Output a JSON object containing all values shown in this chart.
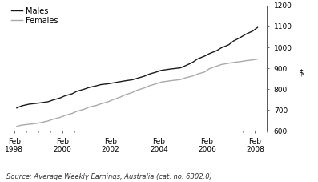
{
  "title": "",
  "ylabel": "$",
  "source_text": "Source: Average Weekly Earnings, Australia (cat. no. 6302.0)",
  "legend_males": "Males",
  "legend_females": "Females",
  "ylim": [
    600,
    1200
  ],
  "yticks": [
    600,
    700,
    800,
    900,
    1000,
    1100,
    1200
  ],
  "xtick_years": [
    1998,
    2000,
    2002,
    2004,
    2006,
    2008
  ],
  "xlim": [
    1997.8,
    2008.5
  ],
  "males_x": [
    1998.1,
    1998.3,
    1998.6,
    1998.9,
    1999.1,
    1999.4,
    1999.6,
    1999.9,
    2000.1,
    2000.4,
    2000.6,
    2000.9,
    2001.1,
    2001.4,
    2001.6,
    2001.9,
    2002.1,
    2002.4,
    2002.6,
    2002.9,
    2003.1,
    2003.4,
    2003.6,
    2003.9,
    2004.1,
    2004.4,
    2004.6,
    2004.9,
    2005.1,
    2005.4,
    2005.6,
    2005.9,
    2006.1,
    2006.4,
    2006.6,
    2006.9,
    2007.1,
    2007.4,
    2007.6,
    2007.9,
    2008.1
  ],
  "males_y": [
    710,
    720,
    728,
    732,
    735,
    740,
    748,
    758,
    768,
    778,
    790,
    800,
    808,
    816,
    822,
    826,
    830,
    836,
    840,
    845,
    852,
    862,
    872,
    882,
    890,
    895,
    898,
    902,
    912,
    928,
    944,
    958,
    970,
    984,
    998,
    1012,
    1030,
    1048,
    1062,
    1078,
    1095
  ],
  "females_x": [
    1998.1,
    1998.3,
    1998.6,
    1998.9,
    1999.1,
    1999.4,
    1999.6,
    1999.9,
    2000.1,
    2000.4,
    2000.6,
    2000.9,
    2001.1,
    2001.4,
    2001.6,
    2001.9,
    2002.1,
    2002.4,
    2002.6,
    2002.9,
    2003.1,
    2003.4,
    2003.6,
    2003.9,
    2004.1,
    2004.4,
    2004.6,
    2004.9,
    2005.1,
    2005.4,
    2005.6,
    2005.9,
    2006.1,
    2006.4,
    2006.6,
    2006.9,
    2007.1,
    2007.4,
    2007.6,
    2007.9,
    2008.1
  ],
  "females_y": [
    622,
    628,
    632,
    636,
    640,
    648,
    656,
    665,
    674,
    684,
    694,
    704,
    714,
    722,
    730,
    740,
    750,
    762,
    773,
    784,
    795,
    806,
    816,
    826,
    834,
    839,
    842,
    846,
    854,
    863,
    872,
    882,
    898,
    910,
    918,
    924,
    928,
    932,
    936,
    940,
    944
  ],
  "males_color": "#1a1a1a",
  "females_color": "#aaaaaa",
  "line_width": 1.0,
  "background_color": "#ffffff",
  "font_size_ticks": 6.5,
  "font_size_source": 6.0,
  "font_size_legend": 7.0,
  "font_size_ylabel": 7.5
}
